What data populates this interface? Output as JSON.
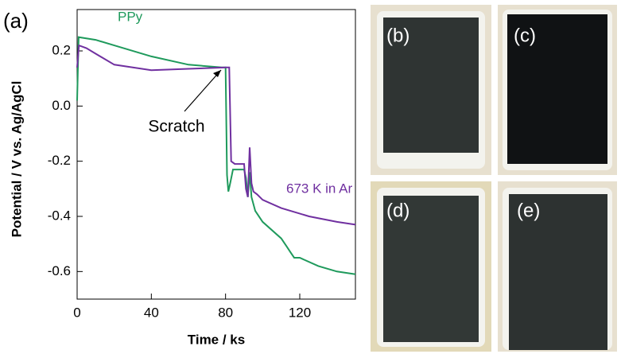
{
  "chart_data": {
    "type": "line",
    "panel_label": "(a)",
    "xlabel": "Time / ks",
    "ylabel": "Potential / V vs. Ag/AgCl",
    "xlim": [
      0,
      150
    ],
    "ylim": [
      -0.7,
      0.35
    ],
    "xticks": [
      0,
      40,
      80,
      120
    ],
    "yticks": [
      0.2,
      {
        "value": 0,
        "label": "0.0"
      },
      -0.2,
      -0.4,
      -0.6
    ],
    "series": [
      {
        "name": "PPy",
        "color": "#1f9a5c",
        "x": [
          0,
          0.8,
          10,
          20,
          40,
          60,
          78,
          80,
          80.8,
          81.5,
          82.5,
          84,
          90,
          91,
          92,
          93,
          94,
          96,
          100,
          110,
          113,
          115,
          117,
          120,
          130,
          140,
          150
        ],
        "values": [
          0.02,
          0.25,
          0.24,
          0.22,
          0.18,
          0.15,
          0.14,
          0.14,
          -0.25,
          -0.31,
          -0.28,
          -0.23,
          -0.23,
          -0.26,
          -0.33,
          -0.24,
          -0.33,
          -0.38,
          -0.42,
          -0.48,
          -0.51,
          -0.53,
          -0.55,
          -0.55,
          -0.58,
          -0.6,
          -0.61
        ]
      },
      {
        "name": "673 K in Ar",
        "color": "#7030a0",
        "x": [
          0,
          1,
          5,
          10,
          20,
          40,
          60,
          80,
          82,
          83,
          85,
          90,
          91,
          92,
          93,
          94,
          95,
          97,
          100,
          110,
          125,
          140,
          150
        ],
        "values": [
          0.14,
          0.22,
          0.21,
          0.19,
          0.15,
          0.13,
          0.135,
          0.14,
          0.14,
          -0.2,
          -0.21,
          -0.21,
          -0.3,
          -0.33,
          -0.15,
          -0.28,
          -0.31,
          -0.32,
          -0.34,
          -0.37,
          -0.4,
          -0.42,
          -0.43
        ]
      }
    ],
    "annotations": [
      "Scratch"
    ]
  },
  "panels": [
    "(b)",
    "(c)",
    "(d)",
    "(e)"
  ]
}
